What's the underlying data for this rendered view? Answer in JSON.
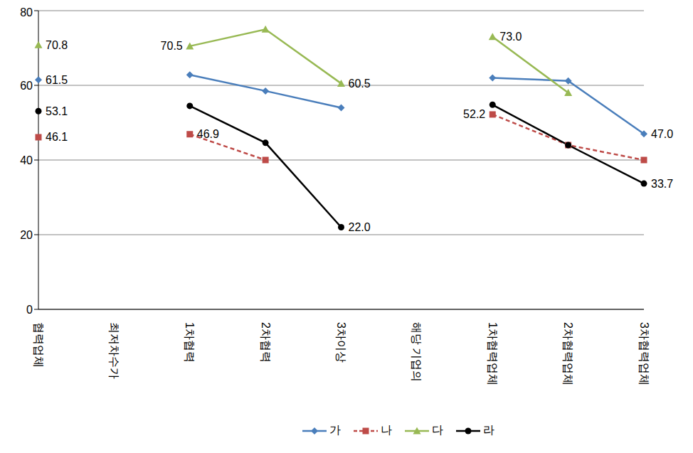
{
  "chart_data": {
    "type": "line",
    "categories": [
      "협력업체",
      "최저차수가",
      "1차협력",
      "2차협력",
      "3차이상",
      "해당 기업의",
      "1차협력업체",
      "2차협력업체",
      "3차협력업체"
    ],
    "ylim": [
      0,
      80
    ],
    "yticks": [
      0,
      20,
      40,
      60,
      80
    ],
    "grid": true,
    "legend": "bottom",
    "series": [
      {
        "name": "가",
        "color": "#4a7ebb",
        "marker": "diamond",
        "line_style": "solid",
        "values": [
          61.5,
          null,
          62.8,
          58.5,
          54.0,
          null,
          62.0,
          61.2,
          47.0
        ],
        "value_labels": [
          "61.5",
          null,
          null,
          null,
          null,
          null,
          null,
          null,
          "47.0"
        ]
      },
      {
        "name": "나",
        "color": "#be4b48",
        "marker": "square",
        "line_style": "dashed",
        "values": [
          46.1,
          null,
          46.9,
          40.0,
          null,
          null,
          52.2,
          44.0,
          40.0
        ],
        "value_labels": [
          "46.1",
          null,
          "46.9",
          null,
          null,
          null,
          "52.2",
          null,
          null
        ]
      },
      {
        "name": "다",
        "color": "#98b954",
        "marker": "triangle",
        "line_style": "solid",
        "values": [
          70.8,
          null,
          70.5,
          75.0,
          60.5,
          null,
          73.0,
          58.0,
          null
        ],
        "value_labels": [
          "70.8",
          null,
          "70.5",
          null,
          "60.5",
          null,
          "73.0",
          null,
          null
        ]
      },
      {
        "name": "라",
        "color": "#000000",
        "marker": "circle",
        "line_style": "solid",
        "values": [
          53.1,
          null,
          54.5,
          44.6,
          22.0,
          null,
          54.8,
          44.0,
          33.7
        ],
        "value_labels": [
          "53.1",
          null,
          null,
          null,
          "22.0",
          null,
          null,
          null,
          "33.7"
        ]
      }
    ]
  }
}
